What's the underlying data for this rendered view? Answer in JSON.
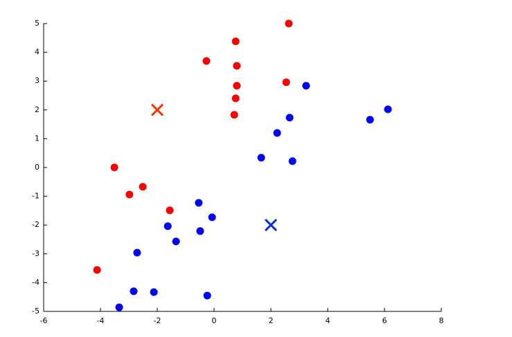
{
  "chart_data": {
    "type": "scatter",
    "xlim": [
      -6,
      8
    ],
    "xticks": [
      -6,
      -4,
      -2,
      0,
      2,
      4,
      6,
      8
    ],
    "ylim": [
      -5,
      5
    ],
    "yticks": [
      -5,
      -4,
      -3,
      -2,
      -1,
      0,
      1,
      2,
      3,
      4,
      5
    ],
    "series": [
      {
        "color": "#ff0000",
        "marker": "o",
        "x": [
          2.63,
          0.76,
          -0.27,
          0.8,
          0.8,
          2.54,
          0.76,
          0.71,
          -3.51,
          -2.51,
          -2.98,
          -1.56,
          -4.12
        ],
        "values": [
          5.0,
          4.38,
          3.7,
          3.53,
          2.84,
          2.96,
          2.4,
          1.83,
          0.0,
          -0.67,
          -0.94,
          -1.49,
          -3.56
        ]
      },
      {
        "color": "#0000ff",
        "marker": "o",
        "x": [
          3.24,
          6.12,
          5.49,
          2.66,
          2.22,
          1.66,
          2.76,
          -0.54,
          -0.07,
          -1.63,
          -0.49,
          -1.34,
          -2.71,
          -2.83,
          -2.12,
          -0.24,
          -3.34
        ],
        "values": [
          2.84,
          2.02,
          1.66,
          1.73,
          1.2,
          0.34,
          0.22,
          -1.23,
          -1.73,
          -2.04,
          -2.21,
          -2.57,
          -2.96,
          -4.3,
          -4.33,
          -4.45,
          -4.86
        ]
      },
      {
        "color": "#ff3300",
        "marker": "x",
        "x": [
          -2
        ],
        "values": [
          2
        ]
      },
      {
        "color": "#0033cc",
        "marker": "x",
        "x": [
          2
        ],
        "values": [
          -2
        ]
      }
    ]
  }
}
